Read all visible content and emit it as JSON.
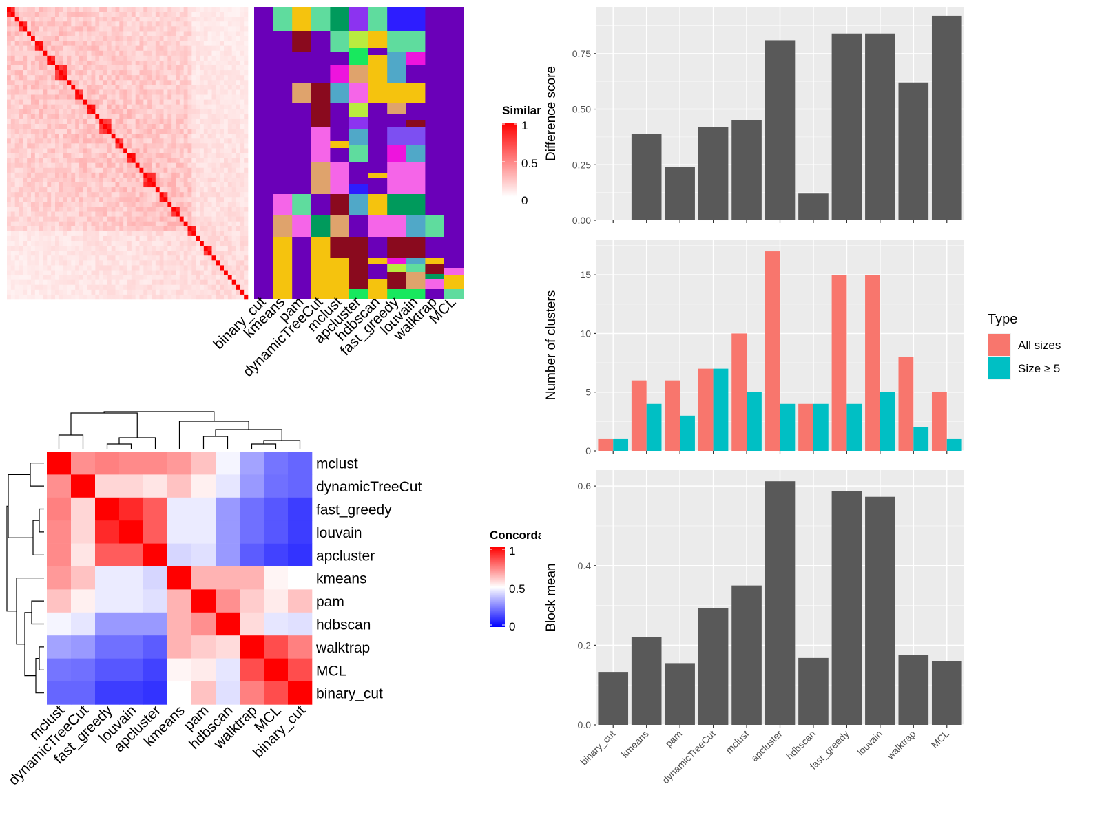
{
  "chart_data": [
    {
      "type": "heatmap",
      "title": "",
      "description": "Similarity heatmap with annotation columns",
      "annotation_columns": [
        "binary_cut",
        "kmeans",
        "pam",
        "dynamicTreeCut",
        "mclust",
        "apcluster",
        "hdbscan",
        "fast_greedy",
        "louvain",
        "walktrap",
        "MCL"
      ],
      "legend": {
        "title": "Similarity",
        "ticks": [
          1,
          0.5,
          0
        ],
        "colors": [
          "#ff0000",
          "#ffffff"
        ]
      }
    },
    {
      "type": "heatmap",
      "title": "",
      "legend": {
        "title": "Concordance",
        "ticks": [
          1,
          0.5,
          0
        ],
        "colors": [
          "#ff0000",
          "#ffffff",
          "#0000ff"
        ]
      },
      "rows": [
        "mclust",
        "dynamicTreeCut",
        "fast_greedy",
        "louvain",
        "apcluster",
        "kmeans",
        "pam",
        "hdbscan",
        "walktrap",
        "MCL",
        "binary_cut"
      ],
      "columns": [
        "mclust",
        "dynamicTreeCut",
        "fast_greedy",
        "louvain",
        "apcluster",
        "kmeans",
        "pam",
        "hdbscan",
        "walktrap",
        "MCL",
        "binary_cut"
      ],
      "values": [
        [
          1.0,
          0.72,
          0.75,
          0.73,
          0.73,
          0.7,
          0.62,
          0.48,
          0.32,
          0.23,
          0.2
        ],
        [
          0.72,
          1.0,
          0.58,
          0.58,
          0.55,
          0.62,
          0.53,
          0.45,
          0.3,
          0.22,
          0.2
        ],
        [
          0.75,
          0.58,
          1.0,
          0.92,
          0.82,
          0.46,
          0.46,
          0.3,
          0.22,
          0.17,
          0.12
        ],
        [
          0.73,
          0.58,
          0.92,
          1.0,
          0.82,
          0.46,
          0.46,
          0.3,
          0.22,
          0.17,
          0.12
        ],
        [
          0.73,
          0.55,
          0.82,
          0.82,
          1.0,
          0.42,
          0.44,
          0.3,
          0.18,
          0.13,
          0.1
        ],
        [
          0.7,
          0.62,
          0.46,
          0.46,
          0.42,
          1.0,
          0.65,
          0.65,
          0.65,
          0.52,
          0.5
        ],
        [
          0.62,
          0.53,
          0.46,
          0.46,
          0.44,
          0.65,
          1.0,
          0.72,
          0.6,
          0.54,
          0.62
        ],
        [
          0.48,
          0.45,
          0.3,
          0.3,
          0.3,
          0.65,
          0.72,
          1.0,
          0.57,
          0.45,
          0.44
        ],
        [
          0.32,
          0.3,
          0.22,
          0.22,
          0.18,
          0.65,
          0.6,
          0.57,
          1.0,
          0.85,
          0.75
        ],
        [
          0.23,
          0.22,
          0.17,
          0.17,
          0.13,
          0.52,
          0.54,
          0.45,
          0.85,
          1.0,
          0.85
        ],
        [
          0.2,
          0.2,
          0.12,
          0.12,
          0.1,
          0.5,
          0.62,
          0.44,
          0.75,
          0.85,
          1.0
        ]
      ]
    },
    {
      "type": "bar",
      "title": "",
      "xlabel": "",
      "ylabel": "Difference score",
      "categories": [
        "binary_cut",
        "kmeans",
        "pam",
        "dynamicTreeCut",
        "mclust",
        "apcluster",
        "hdbscan",
        "fast_greedy",
        "louvain",
        "walktrap",
        "MCL"
      ],
      "values": [
        0,
        0.39,
        0.24,
        0.42,
        0.45,
        0.81,
        0.12,
        0.84,
        0.84,
        0.62,
        0.92
      ],
      "ylim": [
        0,
        0.96
      ],
      "yticks": [
        "0.00",
        "0.25",
        "0.50",
        "0.75"
      ]
    },
    {
      "type": "bar",
      "title": "",
      "xlabel": "",
      "ylabel": "Number of clusters",
      "categories": [
        "binary_cut",
        "kmeans",
        "pam",
        "dynamicTreeCut",
        "mclust",
        "apcluster",
        "hdbscan",
        "fast_greedy",
        "louvain",
        "walktrap",
        "MCL"
      ],
      "series": [
        {
          "name": "All sizes",
          "values": [
            1,
            6,
            6,
            7,
            10,
            17,
            4,
            15,
            15,
            8,
            5
          ]
        },
        {
          "name": "Size ≥ 5",
          "values": [
            1,
            4,
            3,
            7,
            5,
            4,
            4,
            4,
            5,
            2,
            1
          ]
        }
      ],
      "ylim": [
        0,
        18
      ],
      "yticks": [
        "0",
        "5",
        "10",
        "15"
      ],
      "legend": {
        "title": "Type",
        "position": "right"
      }
    },
    {
      "type": "bar",
      "title": "",
      "xlabel": "",
      "ylabel": "Block mean",
      "categories": [
        "binary_cut",
        "kmeans",
        "pam",
        "dynamicTreeCut",
        "mclust",
        "apcluster",
        "hdbscan",
        "fast_greedy",
        "louvain",
        "walktrap",
        "MCL"
      ],
      "values": [
        0.133,
        0.22,
        0.155,
        0.293,
        0.35,
        0.612,
        0.168,
        0.587,
        0.573,
        0.176,
        0.16
      ],
      "ylim": [
        0,
        0.64
      ],
      "yticks": [
        "0.0",
        "0.2",
        "0.4",
        "0.6"
      ]
    }
  ],
  "colors": {
    "gray_bar": "#595959",
    "panel_bg": "#ebebeb",
    "all_sizes": "#f8766d",
    "size5": "#00bfc4"
  }
}
